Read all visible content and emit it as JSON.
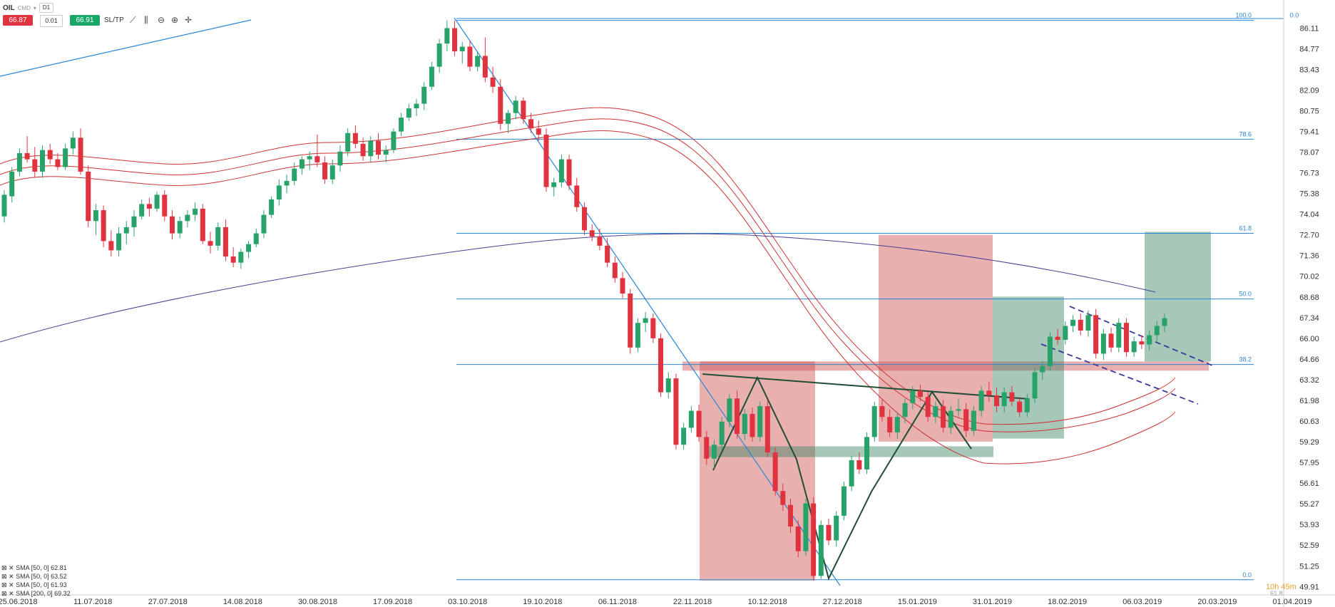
{
  "header": {
    "symbol": "OIL",
    "symbol_sub": "CMD",
    "timeframe": "D1",
    "sell_price": "66.87",
    "spread": "0.01",
    "buy_price": "66.91",
    "sltp_label": "SL/TP"
  },
  "toolbar_icons": [
    "trend-icon",
    "bars-icon",
    "zoom-out-icon",
    "zoom-in-icon",
    "crosshair-icon"
  ],
  "indicators": [
    {
      "label": "SMA [50, 0] 62.81"
    },
    {
      "label": "SMA [50, 0] 63.52"
    },
    {
      "label": "SMA [50, 0] 61.93"
    },
    {
      "label": "SMA [200, 0] 69.32"
    }
  ],
  "timer": "10h 45m",
  "colors": {
    "up": "#27a36a",
    "down": "#e0333f",
    "fib": "#2a86d9",
    "sma": "#cc3333",
    "sma200": "#4b3f8f"
  },
  "chart_data": {
    "type": "candlestick",
    "yticks": [
      "86.11",
      "84.77",
      "83.43",
      "82.09",
      "80.75",
      "79.41",
      "78.07",
      "76.73",
      "75.38",
      "74.04",
      "72.70",
      "71.36",
      "70.02",
      "68.68",
      "67.34",
      "66.00",
      "64.66",
      "63.32",
      "61.98",
      "60.63",
      "59.29",
      "57.95",
      "56.61",
      "55.27",
      "53.93",
      "52.59",
      "51.25",
      "49.91"
    ],
    "ylim": [
      49.6,
      87.0
    ],
    "xticks": [
      "25.06.2018",
      "11.07.2018",
      "27.07.2018",
      "14.08.2018",
      "30.08.2018",
      "17.09.2018",
      "03.10.2018",
      "19.10.2018",
      "06.11.2018",
      "22.11.2018",
      "10.12.2018",
      "27.12.2018",
      "15.01.2019",
      "31.01.2019",
      "18.02.2019",
      "06.03.2019",
      "20.03.2019",
      "01.04.2019"
    ],
    "fib_levels": [
      {
        "label": "100.0",
        "value": 86.6
      },
      {
        "label": "78.6",
        "value": 78.9
      },
      {
        "label": "61.8",
        "value": 72.8
      },
      {
        "label": "50.0",
        "value": 68.55
      },
      {
        "label": "38.2",
        "value": 64.3
      },
      {
        "label": "0.0",
        "value": 50.35
      }
    ],
    "fib_extra_labels": [
      "0.0",
      "61.8"
    ],
    "series": [
      {
        "name": "OIL",
        "values": [
          [
            73.9,
            75.6,
            73.5,
            75.3
          ],
          [
            75.2,
            77.1,
            74.8,
            76.8
          ],
          [
            76.8,
            78.3,
            76.5,
            78.0
          ],
          [
            78.0,
            79.1,
            77.4,
            77.6
          ],
          [
            77.6,
            78.4,
            76.4,
            76.8
          ],
          [
            76.8,
            78.5,
            76.4,
            78.2
          ],
          [
            78.2,
            78.6,
            77.3,
            77.6
          ],
          [
            77.6,
            78.0,
            76.9,
            77.1
          ],
          [
            77.1,
            78.6,
            76.9,
            78.3
          ],
          [
            78.3,
            79.4,
            77.9,
            79.0
          ],
          [
            79.0,
            79.6,
            76.6,
            76.8
          ],
          [
            76.8,
            77.2,
            73.2,
            73.6
          ],
          [
            73.6,
            74.7,
            72.7,
            74.3
          ],
          [
            74.3,
            74.6,
            71.9,
            72.3
          ],
          [
            72.3,
            73.0,
            71.3,
            71.7
          ],
          [
            71.7,
            73.2,
            71.3,
            72.8
          ],
          [
            72.8,
            73.6,
            72.1,
            73.2
          ],
          [
            73.2,
            74.3,
            72.6,
            73.9
          ],
          [
            73.9,
            75.0,
            73.7,
            74.7
          ],
          [
            74.7,
            75.1,
            73.9,
            74.4
          ],
          [
            74.4,
            75.5,
            74.2,
            75.3
          ],
          [
            75.3,
            75.6,
            73.6,
            73.9
          ],
          [
            73.9,
            74.3,
            72.4,
            72.8
          ],
          [
            72.8,
            73.9,
            72.5,
            73.6
          ],
          [
            73.6,
            74.3,
            73.2,
            74.0
          ],
          [
            74.0,
            74.8,
            73.6,
            74.4
          ],
          [
            74.4,
            74.7,
            72.1,
            72.3
          ],
          [
            72.3,
            72.9,
            71.5,
            72.0
          ],
          [
            72.0,
            73.5,
            71.7,
            73.2
          ],
          [
            73.2,
            73.7,
            71.0,
            71.3
          ],
          [
            71.3,
            71.9,
            70.6,
            70.9
          ],
          [
            70.9,
            71.8,
            70.5,
            71.6
          ],
          [
            71.6,
            72.3,
            71.2,
            72.1
          ],
          [
            72.1,
            73.1,
            71.9,
            72.8
          ],
          [
            72.8,
            74.3,
            72.5,
            74.0
          ],
          [
            74.0,
            75.2,
            73.8,
            75.0
          ],
          [
            75.0,
            76.3,
            74.6,
            75.9
          ],
          [
            75.9,
            76.6,
            75.4,
            76.2
          ],
          [
            76.2,
            77.4,
            75.9,
            77.0
          ],
          [
            77.0,
            77.8,
            76.6,
            77.6
          ],
          [
            77.6,
            78.1,
            76.9,
            77.8
          ],
          [
            77.8,
            79.2,
            77.1,
            77.4
          ],
          [
            77.4,
            77.8,
            76.0,
            76.3
          ],
          [
            76.3,
            77.6,
            76.0,
            77.2
          ],
          [
            77.2,
            78.5,
            76.8,
            78.1
          ],
          [
            78.1,
            79.6,
            77.8,
            79.3
          ],
          [
            79.3,
            79.8,
            78.3,
            78.6
          ],
          [
            78.6,
            79.0,
            77.5,
            77.8
          ],
          [
            77.8,
            79.1,
            77.4,
            78.8
          ],
          [
            78.8,
            79.3,
            77.6,
            77.9
          ],
          [
            77.9,
            78.5,
            77.4,
            78.2
          ],
          [
            78.2,
            79.6,
            78.0,
            79.4
          ],
          [
            79.4,
            80.6,
            79.1,
            80.3
          ],
          [
            80.3,
            81.2,
            80.1,
            80.9
          ],
          [
            80.9,
            81.5,
            80.4,
            81.2
          ],
          [
            81.2,
            82.6,
            80.8,
            82.3
          ],
          [
            82.3,
            83.9,
            82.1,
            83.6
          ],
          [
            83.6,
            85.4,
            83.2,
            85.1
          ],
          [
            85.1,
            86.6,
            84.6,
            86.1
          ],
          [
            86.1,
            86.6,
            84.3,
            84.6
          ],
          [
            84.6,
            85.2,
            83.8,
            84.9
          ],
          [
            84.9,
            85.3,
            83.3,
            83.6
          ],
          [
            83.6,
            84.6,
            83.3,
            84.3
          ],
          [
            84.3,
            85.5,
            82.6,
            82.9
          ],
          [
            82.9,
            83.6,
            81.9,
            82.3
          ],
          [
            82.3,
            82.8,
            79.5,
            79.9
          ],
          [
            79.9,
            80.8,
            79.3,
            80.6
          ],
          [
            80.6,
            81.7,
            80.2,
            81.4
          ],
          [
            81.4,
            81.6,
            79.9,
            80.2
          ],
          [
            80.2,
            80.6,
            79.3,
            79.6
          ],
          [
            79.6,
            80.1,
            78.8,
            79.2
          ],
          [
            79.2,
            79.6,
            75.5,
            75.8
          ],
          [
            75.8,
            76.4,
            75.2,
            76.1
          ],
          [
            76.1,
            77.9,
            75.8,
            77.6
          ],
          [
            77.6,
            77.9,
            75.6,
            75.9
          ],
          [
            75.9,
            76.4,
            74.2,
            74.5
          ],
          [
            74.5,
            74.8,
            72.7,
            73.0
          ],
          [
            73.0,
            73.4,
            72.3,
            72.6
          ],
          [
            72.6,
            73.1,
            71.7,
            72.0
          ],
          [
            72.0,
            72.5,
            70.6,
            70.9
          ],
          [
            70.9,
            71.3,
            69.6,
            69.9
          ],
          [
            69.9,
            70.3,
            68.6,
            68.9
          ],
          [
            68.9,
            69.2,
            65.0,
            65.4
          ],
          [
            65.4,
            67.3,
            65.1,
            67.0
          ],
          [
            67.0,
            67.7,
            66.4,
            67.3
          ],
          [
            67.3,
            67.6,
            65.7,
            66.0
          ],
          [
            66.0,
            66.3,
            62.2,
            62.5
          ],
          [
            62.5,
            63.8,
            62.1,
            63.4
          ],
          [
            63.4,
            63.7,
            58.8,
            59.1
          ],
          [
            59.1,
            60.5,
            58.8,
            60.2
          ],
          [
            60.2,
            61.6,
            59.9,
            61.3
          ],
          [
            61.3,
            61.7,
            59.3,
            59.6
          ],
          [
            59.6,
            60.0,
            57.8,
            58.2
          ],
          [
            58.2,
            59.4,
            57.6,
            59.1
          ],
          [
            59.1,
            60.9,
            58.8,
            60.6
          ],
          [
            60.6,
            62.4,
            60.2,
            62.1
          ],
          [
            62.1,
            62.6,
            59.5,
            59.8
          ],
          [
            59.8,
            61.4,
            59.4,
            61.1
          ],
          [
            61.1,
            61.5,
            59.3,
            59.6
          ],
          [
            59.6,
            61.9,
            59.3,
            61.6
          ],
          [
            61.6,
            62.0,
            58.3,
            58.6
          ],
          [
            58.6,
            58.9,
            55.8,
            56.1
          ],
          [
            56.1,
            56.6,
            54.8,
            55.2
          ],
          [
            55.2,
            55.6,
            53.4,
            53.8
          ],
          [
            53.8,
            54.2,
            51.8,
            52.2
          ],
          [
            52.2,
            55.6,
            51.9,
            55.3
          ],
          [
            55.3,
            55.7,
            50.3,
            50.6
          ],
          [
            50.6,
            54.2,
            50.4,
            53.9
          ],
          [
            53.9,
            54.3,
            52.6,
            52.9
          ],
          [
            52.9,
            54.8,
            52.5,
            54.5
          ],
          [
            54.5,
            56.7,
            54.2,
            56.4
          ],
          [
            56.4,
            58.4,
            56.1,
            58.1
          ],
          [
            58.1,
            58.6,
            57.2,
            57.5
          ],
          [
            57.5,
            59.9,
            57.2,
            59.6
          ],
          [
            59.6,
            61.9,
            59.3,
            61.6
          ],
          [
            61.6,
            62.0,
            60.6,
            60.9
          ],
          [
            60.9,
            61.4,
            59.6,
            59.9
          ],
          [
            59.9,
            61.2,
            59.5,
            60.9
          ],
          [
            60.9,
            62.1,
            60.5,
            61.8
          ],
          [
            61.8,
            62.9,
            61.4,
            62.6
          ],
          [
            62.6,
            63.0,
            61.9,
            62.2
          ],
          [
            62.2,
            62.5,
            60.6,
            60.9
          ],
          [
            60.9,
            61.9,
            60.5,
            61.6
          ],
          [
            61.6,
            62.0,
            59.9,
            60.2
          ],
          [
            60.2,
            61.6,
            59.8,
            61.3
          ],
          [
            61.3,
            62.1,
            60.9,
            61.4
          ],
          [
            61.4,
            61.8,
            59.6,
            60.0
          ],
          [
            60.0,
            61.6,
            59.7,
            61.3
          ],
          [
            61.3,
            62.9,
            60.9,
            62.6
          ],
          [
            62.6,
            63.2,
            61.9,
            62.3
          ],
          [
            62.3,
            62.8,
            61.2,
            61.6
          ],
          [
            61.6,
            62.8,
            61.2,
            62.5
          ],
          [
            62.5,
            62.9,
            61.6,
            61.9
          ],
          [
            61.9,
            62.2,
            60.9,
            61.2
          ],
          [
            61.2,
            62.4,
            60.9,
            62.1
          ],
          [
            62.1,
            64.1,
            61.8,
            63.8
          ],
          [
            63.8,
            64.5,
            63.3,
            64.2
          ],
          [
            64.2,
            66.4,
            63.9,
            66.1
          ],
          [
            66.1,
            66.6,
            65.6,
            65.9
          ],
          [
            65.9,
            67.1,
            65.6,
            66.8
          ],
          [
            66.8,
            67.5,
            66.4,
            67.2
          ],
          [
            67.2,
            67.6,
            66.2,
            66.5
          ],
          [
            66.5,
            67.8,
            66.1,
            67.5
          ],
          [
            67.5,
            67.9,
            64.7,
            65.0
          ],
          [
            65.0,
            66.6,
            64.6,
            66.3
          ],
          [
            66.3,
            66.7,
            65.1,
            65.4
          ],
          [
            65.4,
            67.3,
            65.1,
            67.0
          ],
          [
            67.0,
            67.3,
            64.8,
            65.1
          ],
          [
            65.1,
            66.1,
            64.8,
            65.8
          ],
          [
            65.8,
            66.2,
            65.3,
            65.6
          ],
          [
            65.6,
            66.5,
            65.2,
            66.2
          ],
          [
            66.2,
            67.1,
            65.8,
            66.8
          ],
          [
            66.8,
            67.6,
            66.4,
            67.3
          ]
        ]
      },
      {
        "name": "SMA 200",
        "values": [
          66.5,
          70.2,
          72.8,
          72.2,
          69.3
        ]
      }
    ]
  }
}
